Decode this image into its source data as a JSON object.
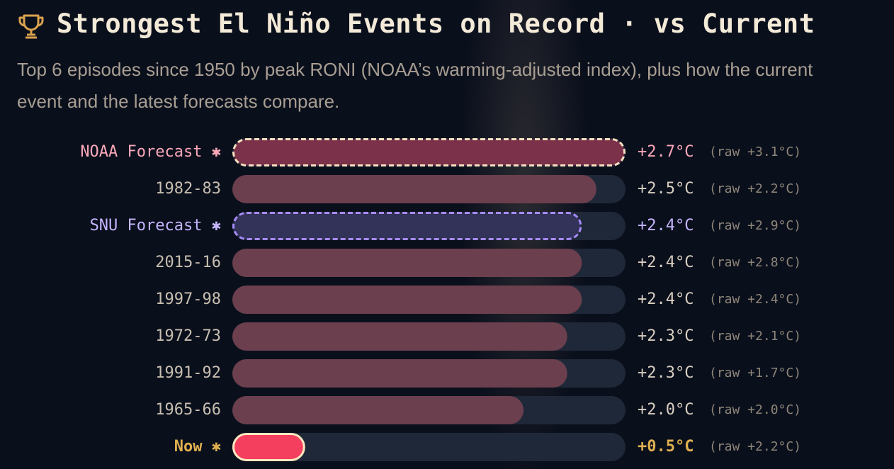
{
  "chart_data": {
    "type": "hbar",
    "title": "Strongest El Niño Events on Record · vs Current",
    "subtitle": "Top 6 episodes since 1950 by peak RONI (NOAA’s warming-adjusted index), plus how the current event and the latest forecasts compare.",
    "categories": [
      "NOAA Forecast ✱",
      "1982-83",
      "SNU Forecast ✱",
      "2015-16",
      "1997-98",
      "1972-73",
      "1991-92",
      "1965-66",
      "Now ✱"
    ],
    "values": [
      2.7,
      2.5,
      2.4,
      2.4,
      2.4,
      2.3,
      2.3,
      2.0,
      0.5
    ],
    "value_labels": [
      "+2.7°C",
      "+2.5°C",
      "+2.4°C",
      "+2.4°C",
      "+2.4°C",
      "+2.3°C",
      "+2.3°C",
      "+2.0°C",
      "+0.5°C"
    ],
    "raw_values": [
      3.1,
      2.2,
      2.9,
      2.8,
      2.4,
      2.1,
      1.7,
      2.0,
      2.2
    ],
    "raw_labels": [
      "(raw +3.1°C)",
      "(raw +2.2°C)",
      "(raw +2.9°C)",
      "(raw +2.8°C)",
      "(raw +2.4°C)",
      "(raw +2.1°C)",
      "(raw +1.7°C)",
      "(raw +2.0°C)",
      "(raw +2.2°C)"
    ],
    "colors": [
      "#7a3149",
      "#6b3f4d",
      "#33335a",
      "#6b3f4d",
      "#6b3f4d",
      "#6b3f4d",
      "#6b3f4d",
      "#6b3f4d",
      "#f43f5e"
    ],
    "label_colors": [
      "#f9a8b8",
      "#c8bfb0",
      "#c4b5fd",
      "#c8bfb0",
      "#c8bfb0",
      "#c8bfb0",
      "#c8bfb0",
      "#c8bfb0",
      "#e0b050"
    ],
    "outline_colors": [
      "#f5e1c0",
      null,
      "#a78bfa",
      null,
      null,
      null,
      null,
      null,
      "#fde7c0"
    ],
    "outline_styles": [
      "dashed",
      null,
      "dashed",
      null,
      null,
      null,
      null,
      null,
      "solid"
    ],
    "track_color": "#1f2838",
    "xlim": [
      0,
      2.7
    ]
  }
}
